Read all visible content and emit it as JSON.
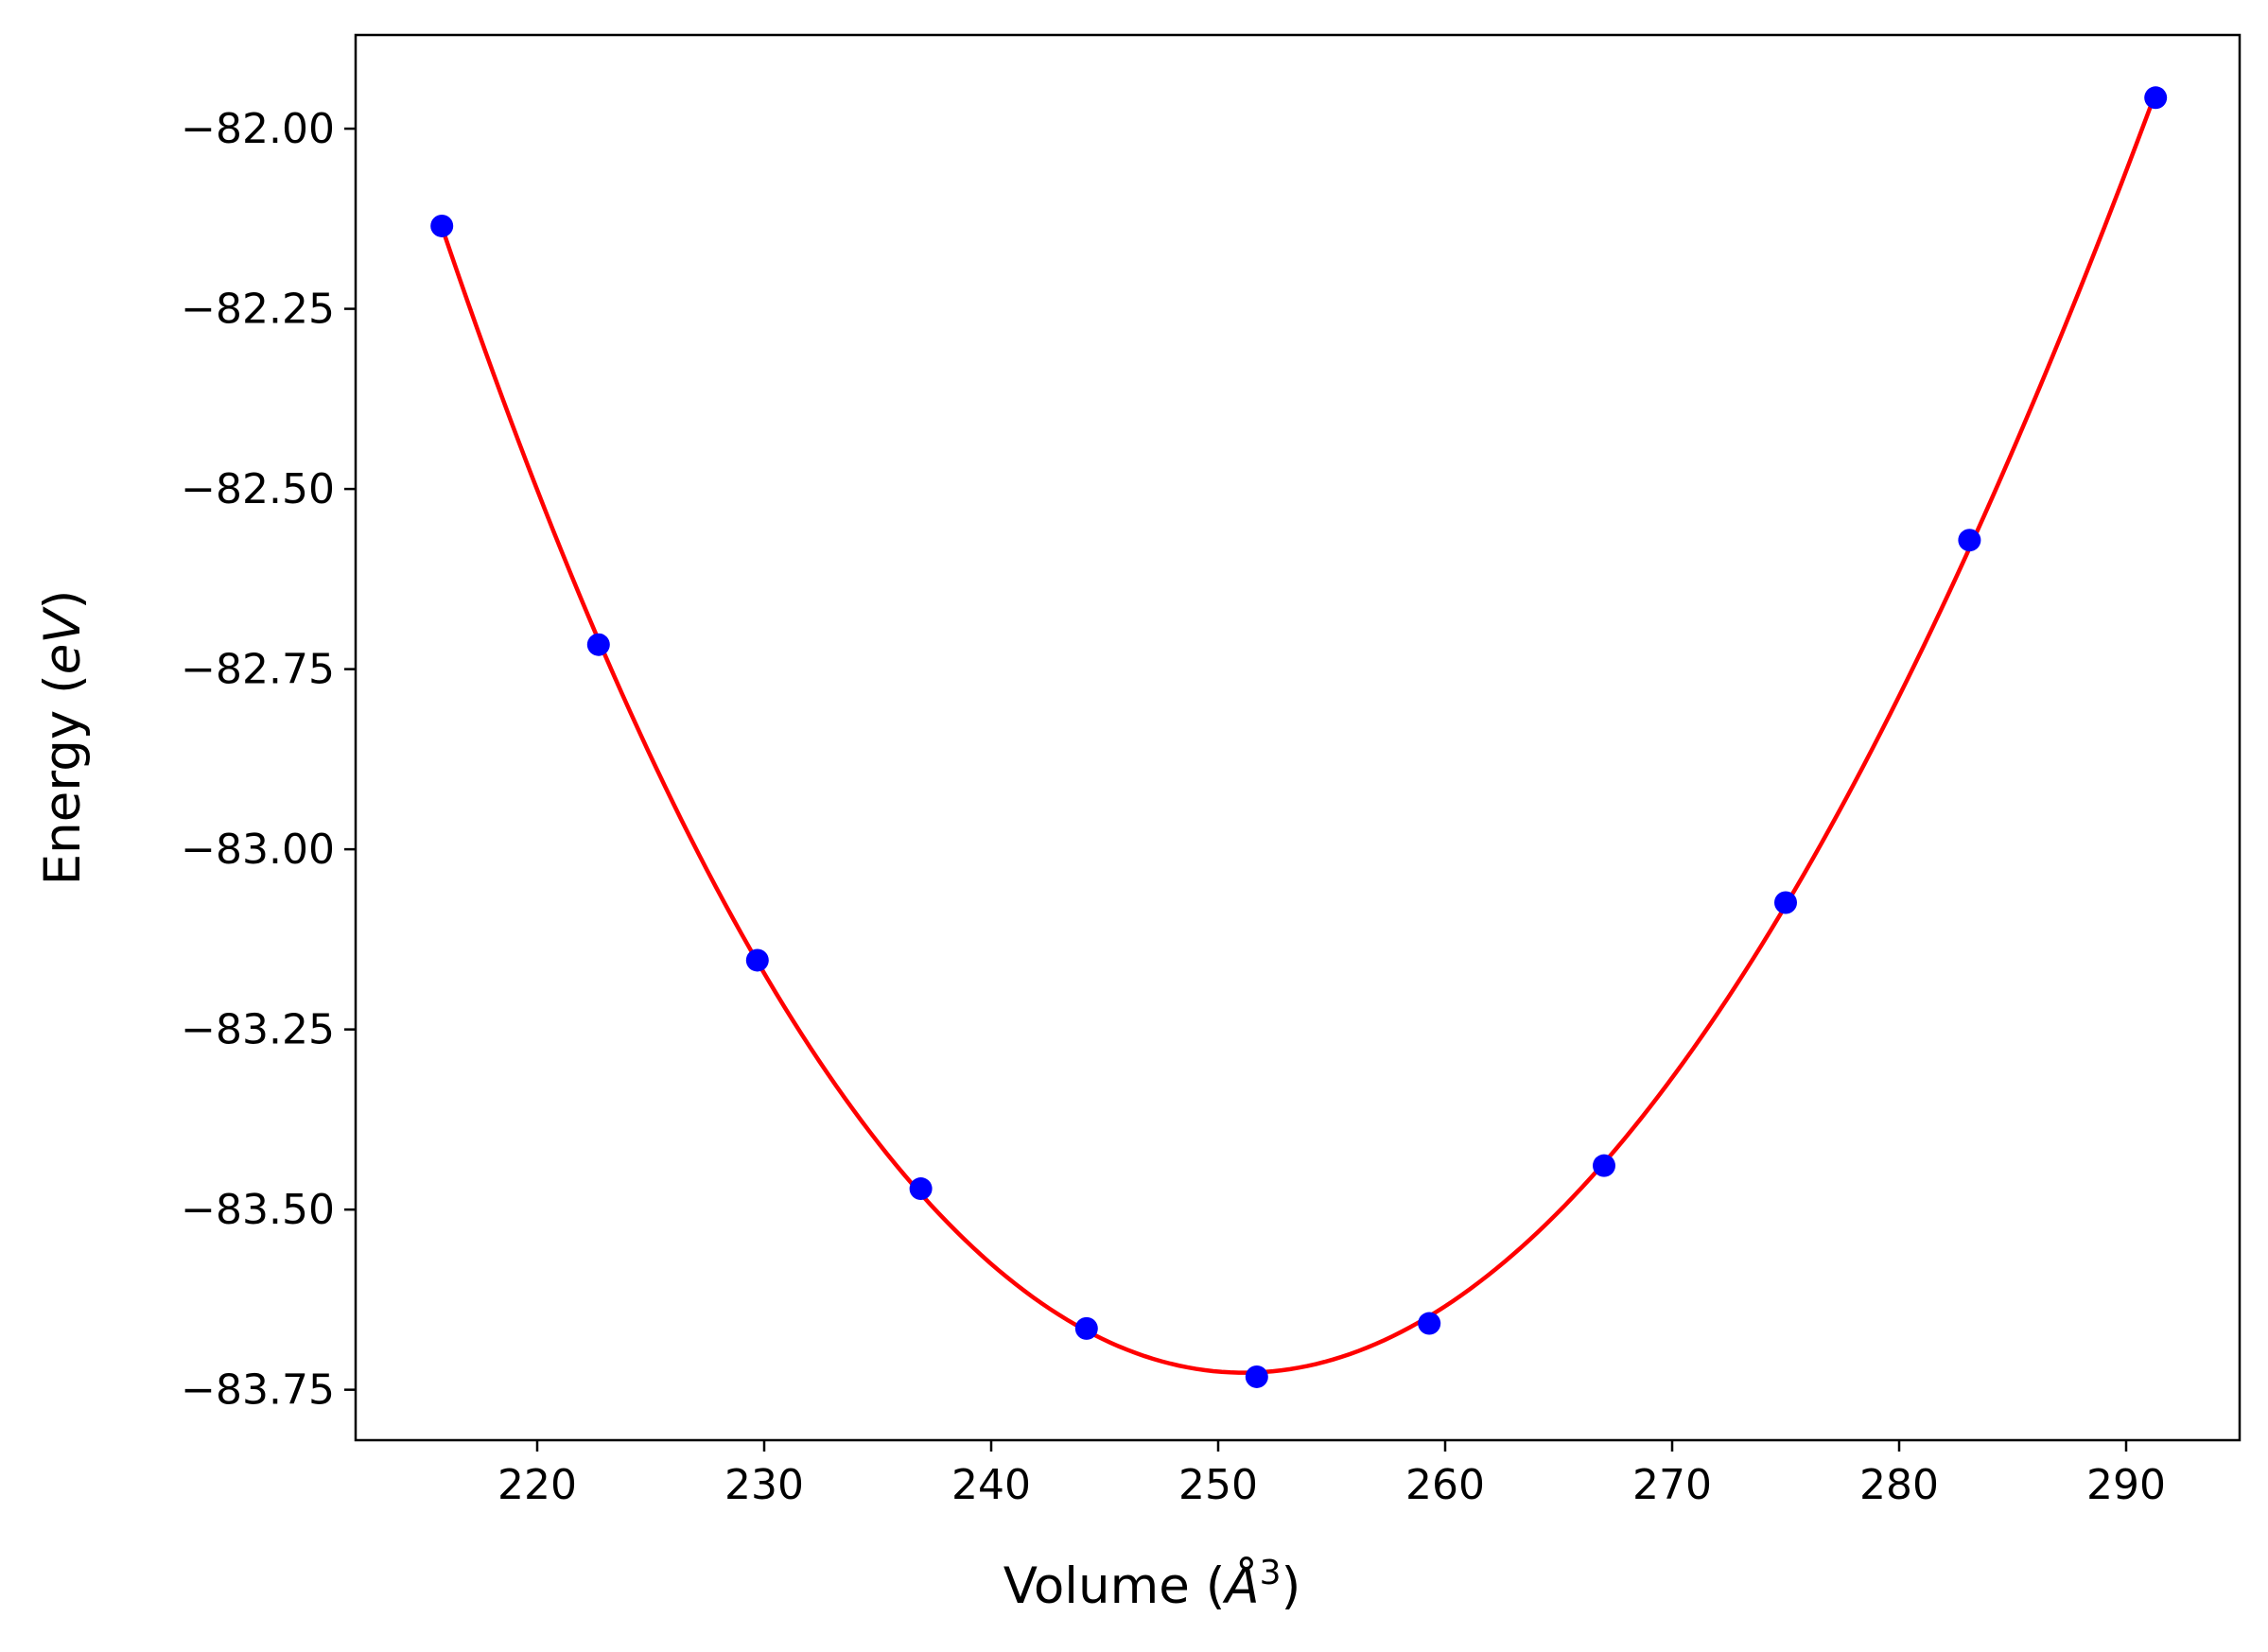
{
  "chart_data": {
    "type": "scatter",
    "title": "",
    "xlabel_text": "Volume (",
    "xlabel_unit": "Å",
    "xlabel_exp": "3",
    "xlabel_close": ")",
    "ylabel_text": "Energy (",
    "ylabel_unit": "eV",
    "ylabel_close": ")",
    "xlim": [
      212,
      295
    ],
    "ylim": [
      -83.82,
      -81.87
    ],
    "x_ticks": [
      220,
      230,
      240,
      250,
      260,
      270,
      280,
      290
    ],
    "x_tick_labels": [
      "220",
      "230",
      "240",
      "250",
      "260",
      "270",
      "280",
      "290"
    ],
    "y_ticks": [
      -82.0,
      -82.25,
      -82.5,
      -82.75,
      -83.0,
      -83.25,
      -83.5,
      -83.75
    ],
    "y_tick_labels": [
      "−82.00",
      "−82.25",
      "−82.50",
      "−82.75",
      "−83.00",
      "−83.25",
      "−83.50",
      "−83.75"
    ],
    "grid": false,
    "legend": "none",
    "series": [
      {
        "kind": "points",
        "color": "#0000ff",
        "x": [
          215.8,
          222.7,
          229.7,
          236.9,
          244.2,
          251.7,
          259.3,
          267.0,
          275.0,
          283.1,
          291.3
        ],
        "y": [
          -82.135,
          -82.716,
          -83.154,
          -83.471,
          -83.665,
          -83.732,
          -83.658,
          -83.439,
          -83.074,
          -82.571,
          -81.957
        ]
      },
      {
        "kind": "fit",
        "color": "#ff0000",
        "x": [
          215.8,
          222.7,
          229.7,
          236.9,
          244.2,
          251.0,
          259.3,
          267.0,
          275.0,
          283.1,
          291.3
        ],
        "y": [
          -82.135,
          -82.716,
          -83.154,
          -83.471,
          -83.665,
          -83.728,
          -83.658,
          -83.439,
          -83.074,
          -82.571,
          -81.957
        ]
      }
    ]
  }
}
